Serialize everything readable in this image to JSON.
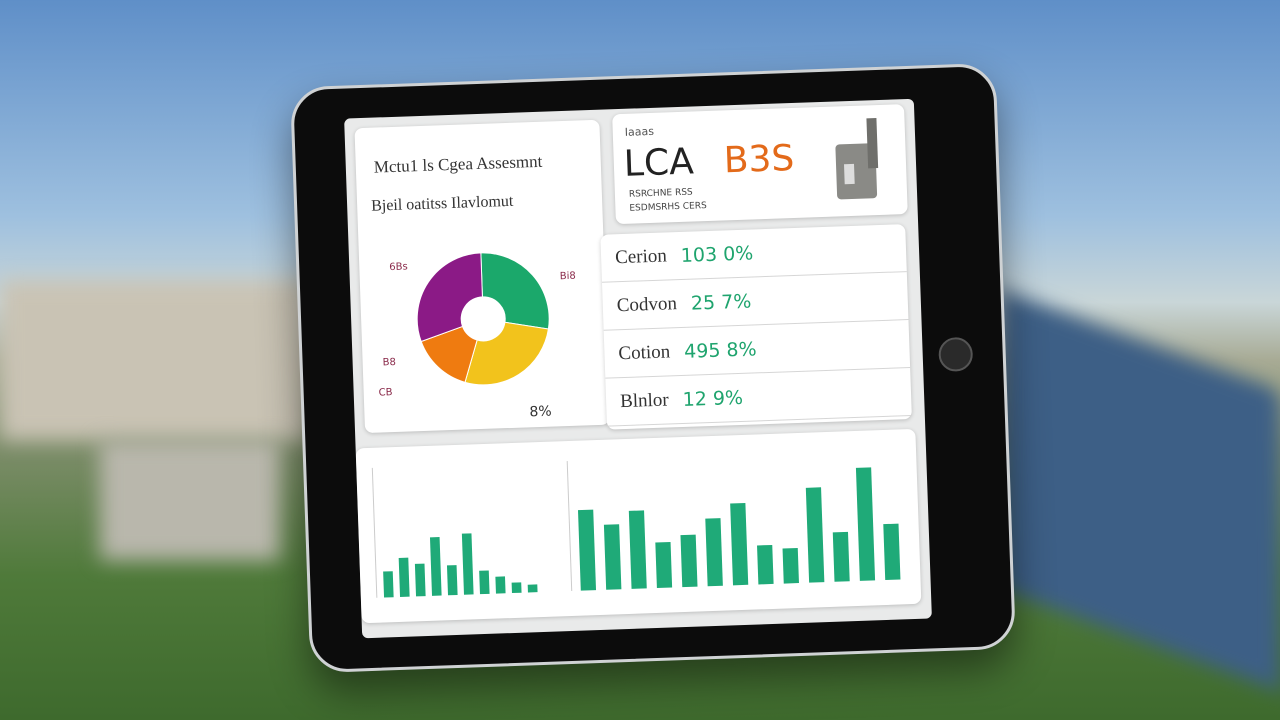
{
  "dashboard": {
    "pie_panel": {
      "title": "Mctu1 ls Cgea Assesmnt",
      "subtitle": "Bjeil oatitss Ilavlomut",
      "labels": [
        "8%",
        "B8",
        "CB",
        "Bi8",
        "6Bs"
      ]
    },
    "brand": {
      "kicker": "Iaaas",
      "name": "LCA",
      "code": "B3S",
      "lines": [
        "RSRCHNE RSS",
        "ESDMSRHS CERS"
      ]
    },
    "metrics": [
      {
        "label": "Cerion",
        "value": "103 0%"
      },
      {
        "label": "Codvon",
        "value": "25 7%"
      },
      {
        "label": "Cotion",
        "value": "495 8%"
      },
      {
        "label": "Blnlor",
        "value": "12 9%"
      }
    ]
  },
  "chart_data": [
    {
      "type": "pie",
      "values": [
        28,
        27,
        15,
        30
      ],
      "colors": [
        "#1ba86b",
        "#f2c31c",
        "#ef7b10",
        "#8b1a86"
      ]
    },
    {
      "type": "bar",
      "values": [
        20,
        30,
        25,
        45,
        23,
        47,
        18,
        13,
        8,
        6
      ],
      "color": "#1faa78",
      "ylim": [
        0,
        100
      ]
    },
    {
      "type": "bar",
      "values": [
        62,
        50,
        60,
        35,
        40,
        52,
        63,
        30,
        27,
        73,
        38,
        87,
        43
      ],
      "color": "#1faa78",
      "ylim": [
        0,
        100
      ]
    }
  ]
}
